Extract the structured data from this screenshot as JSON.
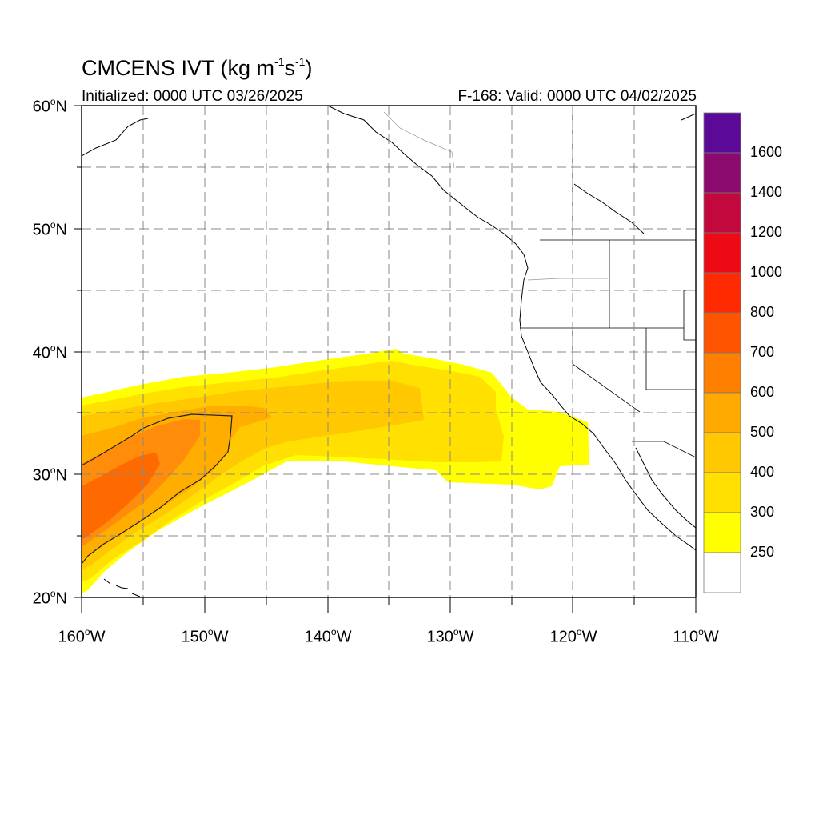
{
  "map": {
    "title_main": "CMCENS IVT (kg m",
    "title_sup1": "-1",
    "title_mid": "s",
    "title_sup2": "-1",
    "title_end": ")",
    "initialized": "Initialized: 0000 UTC 03/26/2025",
    "valid": "F-168: Valid: 0000 UTC 04/02/2025",
    "lat_labels": [
      {
        "deg": "60",
        "unit": "o",
        "hem": "N"
      },
      {
        "deg": "50",
        "unit": "o",
        "hem": "N"
      },
      {
        "deg": "40",
        "unit": "o",
        "hem": "N"
      },
      {
        "deg": "30",
        "unit": "o",
        "hem": "N"
      },
      {
        "deg": "20",
        "unit": "o",
        "hem": "N"
      }
    ],
    "lon_labels": [
      {
        "deg": "160",
        "unit": "o",
        "hem": "W"
      },
      {
        "deg": "150",
        "unit": "o",
        "hem": "W"
      },
      {
        "deg": "140",
        "unit": "o",
        "hem": "W"
      },
      {
        "deg": "130",
        "unit": "o",
        "hem": "W"
      },
      {
        "deg": "120",
        "unit": "o",
        "hem": "W"
      },
      {
        "deg": "110",
        "unit": "o",
        "hem": "W"
      }
    ]
  },
  "colorbar": {
    "labels": [
      "1600",
      "1400",
      "1200",
      "1000",
      "800",
      "700",
      "600",
      "500",
      "400",
      "300",
      "250"
    ],
    "colors": [
      "#5a0a96",
      "#8b0a6e",
      "#c2083c",
      "#ee0a14",
      "#ff2a00",
      "#ff5500",
      "#ff8000",
      "#ffaa00",
      "#ffc800",
      "#ffe000",
      "#ffff00",
      "#ffffff"
    ]
  },
  "colors": {
    "band_250": "#ffff00",
    "band_300": "#ffe100",
    "band_400": "#ffc800",
    "band_500": "#ffae00",
    "band_600": "#ff8c0a",
    "band_700": "#ff6a00"
  }
}
